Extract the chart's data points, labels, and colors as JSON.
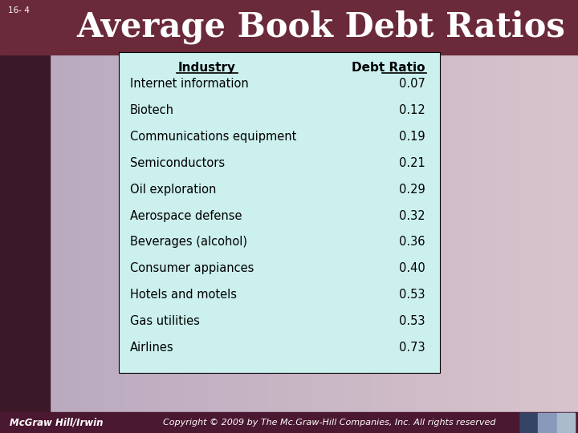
{
  "title": "Average Book Debt Ratios",
  "slide_number": "16- 4",
  "header_bg": "#6B2A3A",
  "slide_bg_left": "#C0B0C8",
  "slide_bg_right": "#D8C8D0",
  "table_bg": "#CBF0EE",
  "table_border": "#000000",
  "col_headers": [
    "Industry",
    "Debt Ratio"
  ],
  "rows": [
    [
      "Internet information",
      "0.07"
    ],
    [
      "Biotech",
      "0.12"
    ],
    [
      "Communications equipment",
      "0.19"
    ],
    [
      "Semiconductors",
      "0.21"
    ],
    [
      "Oil exploration",
      "0.29"
    ],
    [
      "Aerospace defense",
      "0.32"
    ],
    [
      "Beverages (alcohol)",
      "0.36"
    ],
    [
      "Consumer appiances",
      "0.40"
    ],
    [
      "Hotels and motels",
      "0.53"
    ],
    [
      "Gas utilities",
      "0.53"
    ],
    [
      "Airlines",
      "0.73"
    ]
  ],
  "footer_bg": "#4A1830",
  "footer_left": "McGraw Hill/Irwin",
  "footer_right": "Copyright © 2009 by The Mc.Graw-Hill Companies, Inc. All rights reserved",
  "title_color": "#FFFFFF",
  "title_fontsize": 30,
  "table_header_fontsize": 11,
  "table_row_fontsize": 10.5,
  "footer_color": "#FFFFFF",
  "footer_fontsize": 8.5
}
